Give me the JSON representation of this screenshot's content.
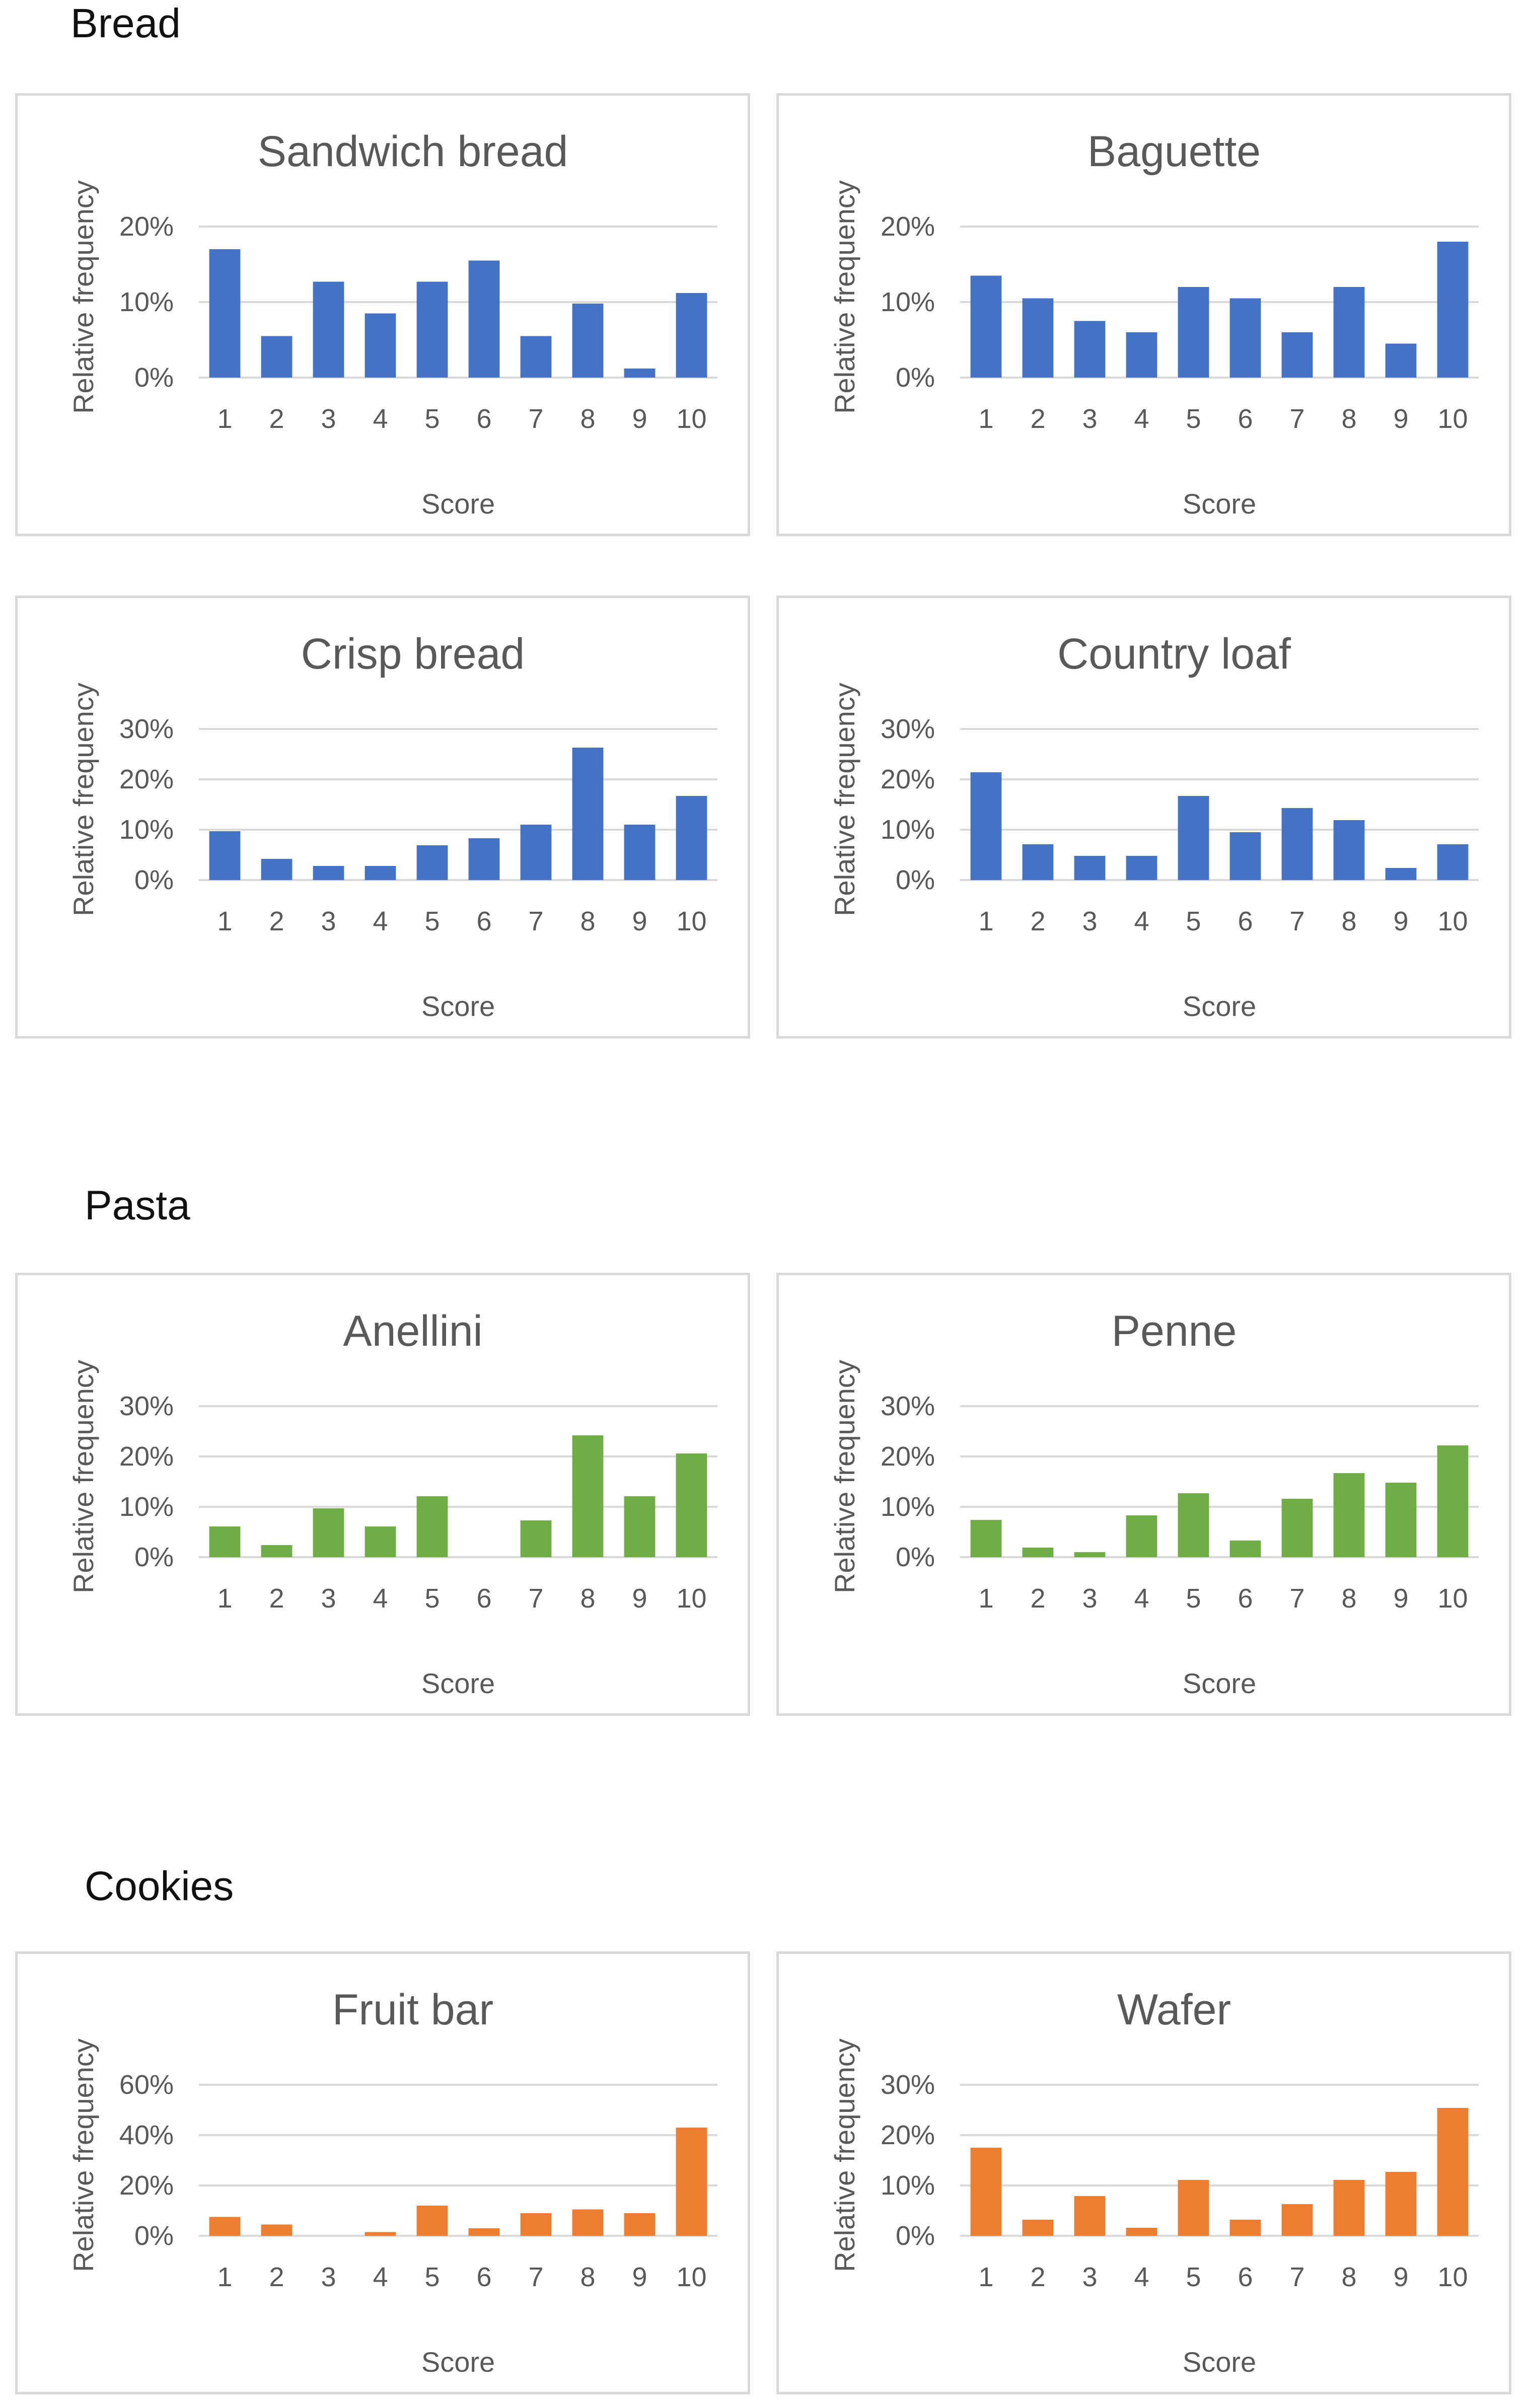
{
  "sections": {
    "bread": "Bread",
    "pasta": "Pasta",
    "cookies": "Cookies"
  },
  "colors": {
    "bread": "#4472c4",
    "pasta": "#70ad47",
    "cookies": "#ed7d31",
    "grid": "#d9d9d9",
    "text": "#595959"
  },
  "chart_data": [
    {
      "type": "bar",
      "title": "Sandwich bread",
      "section": "Bread",
      "xlabel": "Score",
      "ylabel": "Relative frequency",
      "categories": [
        "1",
        "2",
        "3",
        "4",
        "5",
        "6",
        "7",
        "8",
        "9",
        "10"
      ],
      "values": [
        0.17,
        0.055,
        0.127,
        0.085,
        0.127,
        0.155,
        0.055,
        0.098,
        0.012,
        0.112
      ],
      "ylim": [
        0,
        0.2
      ],
      "yticks": [
        0,
        0.1,
        0.2
      ],
      "yticklabels": [
        "0%",
        "10%",
        "20%"
      ],
      "grid": true,
      "color": "#4472c4"
    },
    {
      "type": "bar",
      "title": "Baguette",
      "section": "Bread",
      "xlabel": "Score",
      "ylabel": "Relative frequency",
      "categories": [
        "1",
        "2",
        "3",
        "4",
        "5",
        "6",
        "7",
        "8",
        "9",
        "10"
      ],
      "values": [
        0.135,
        0.105,
        0.075,
        0.06,
        0.12,
        0.105,
        0.06,
        0.12,
        0.045,
        0.18
      ],
      "ylim": [
        0,
        0.2
      ],
      "yticks": [
        0,
        0.1,
        0.2
      ],
      "yticklabels": [
        "0%",
        "10%",
        "20%"
      ],
      "grid": true,
      "color": "#4472c4"
    },
    {
      "type": "bar",
      "title": "Crisp bread",
      "section": "Bread",
      "xlabel": "Score",
      "ylabel": "Relative frequency",
      "categories": [
        "1",
        "2",
        "3",
        "4",
        "5",
        "6",
        "7",
        "8",
        "9",
        "10"
      ],
      "values": [
        0.097,
        0.042,
        0.028,
        0.028,
        0.069,
        0.083,
        0.11,
        0.263,
        0.11,
        0.167
      ],
      "ylim": [
        0,
        0.3
      ],
      "yticks": [
        0,
        0.1,
        0.2,
        0.3
      ],
      "yticklabels": [
        "0%",
        "10%",
        "20%",
        "30%"
      ],
      "grid": true,
      "color": "#4472c4"
    },
    {
      "type": "bar",
      "title": "Country loaf",
      "section": "Bread",
      "xlabel": "Score",
      "ylabel": "Relative frequency",
      "categories": [
        "1",
        "2",
        "3",
        "4",
        "5",
        "6",
        "7",
        "8",
        "9",
        "10"
      ],
      "values": [
        0.214,
        0.071,
        0.048,
        0.048,
        0.167,
        0.095,
        0.143,
        0.119,
        0.024,
        0.071
      ],
      "ylim": [
        0,
        0.3
      ],
      "yticks": [
        0,
        0.1,
        0.2,
        0.3
      ],
      "yticklabels": [
        "0%",
        "10%",
        "20%",
        "30%"
      ],
      "grid": true,
      "color": "#4472c4"
    },
    {
      "type": "bar",
      "title": "Anellini",
      "section": "Pasta",
      "xlabel": "Score",
      "ylabel": "Relative frequency",
      "categories": [
        "1",
        "2",
        "3",
        "4",
        "5",
        "6",
        "7",
        "8",
        "9",
        "10"
      ],
      "values": [
        0.061,
        0.024,
        0.097,
        0.061,
        0.121,
        0.0,
        0.073,
        0.242,
        0.121,
        0.206
      ],
      "ylim": [
        0,
        0.3
      ],
      "yticks": [
        0,
        0.1,
        0.2,
        0.3
      ],
      "yticklabels": [
        "0%",
        "10%",
        "20%",
        "30%"
      ],
      "grid": true,
      "color": "#70ad47"
    },
    {
      "type": "bar",
      "title": "Penne",
      "section": "Pasta",
      "xlabel": "Score",
      "ylabel": "Relative frequency",
      "categories": [
        "1",
        "2",
        "3",
        "4",
        "5",
        "6",
        "7",
        "8",
        "9",
        "10"
      ],
      "values": [
        0.074,
        0.019,
        0.01,
        0.083,
        0.127,
        0.033,
        0.116,
        0.167,
        0.148,
        0.222
      ],
      "ylim": [
        0,
        0.3
      ],
      "yticks": [
        0,
        0.1,
        0.2,
        0.3
      ],
      "yticklabels": [
        "0%",
        "10%",
        "20%",
        "30%"
      ],
      "grid": true,
      "color": "#70ad47"
    },
    {
      "type": "bar",
      "title": "Fruit bar",
      "section": "Cookies",
      "xlabel": "Score",
      "ylabel": "Relative frequency",
      "categories": [
        "1",
        "2",
        "3",
        "4",
        "5",
        "6",
        "7",
        "8",
        "9",
        "10"
      ],
      "values": [
        0.075,
        0.045,
        0.0,
        0.015,
        0.12,
        0.03,
        0.09,
        0.105,
        0.09,
        0.43
      ],
      "ylim": [
        0,
        0.6
      ],
      "yticks": [
        0,
        0.2,
        0.4,
        0.6
      ],
      "yticklabels": [
        "0%",
        "20%",
        "40%",
        "60%"
      ],
      "grid": true,
      "color": "#ed7d31"
    },
    {
      "type": "bar",
      "title": "Wafer",
      "section": "Cookies",
      "xlabel": "Score",
      "ylabel": "Relative frequency",
      "categories": [
        "1",
        "2",
        "3",
        "4",
        "5",
        "6",
        "7",
        "8",
        "9",
        "10"
      ],
      "values": [
        0.175,
        0.032,
        0.079,
        0.016,
        0.111,
        0.032,
        0.063,
        0.111,
        0.127,
        0.254
      ],
      "ylim": [
        0,
        0.3
      ],
      "yticks": [
        0,
        0.1,
        0.2,
        0.3
      ],
      "yticklabels": [
        "0%",
        "10%",
        "20%",
        "30%"
      ],
      "grid": true,
      "color": "#ed7d31"
    }
  ]
}
